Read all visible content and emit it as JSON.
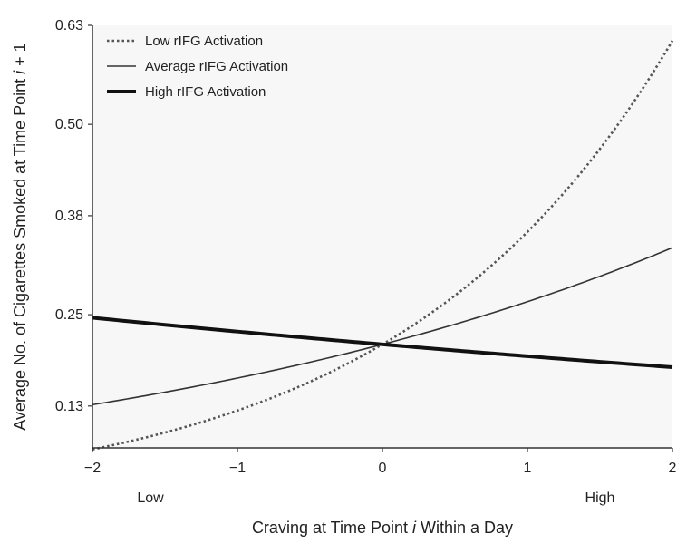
{
  "chart_data": {
    "type": "line",
    "title": "",
    "xlabel_parts": [
      "Craving at Time Point ",
      "i",
      " Within a Day"
    ],
    "ylabel_parts": [
      "Average No. of Cigarettes Smoked at Time Point ",
      "i",
      " + 1"
    ],
    "xlim": [
      -2,
      2
    ],
    "ylim": [
      0.075,
      0.63
    ],
    "x_ticks": [
      {
        "value": -2,
        "label": "−2"
      },
      {
        "value": -1,
        "label": "−1"
      },
      {
        "value": 0,
        "label": "0"
      },
      {
        "value": 1,
        "label": "1"
      },
      {
        "value": 2,
        "label": "2"
      }
    ],
    "y_ticks": [
      {
        "value": 0.13,
        "label": "0.13"
      },
      {
        "value": 0.25,
        "label": "0.25"
      },
      {
        "value": 0.38,
        "label": "0.38"
      },
      {
        "value": 0.5,
        "label": "0.50"
      },
      {
        "value": 0.63,
        "label": "0.63"
      }
    ],
    "x_endpoint_labels": [
      {
        "value": -1.6,
        "label": "Low"
      },
      {
        "value": 1.5,
        "label": "High"
      }
    ],
    "legend_position": "top-left",
    "grid": false,
    "series": [
      {
        "name": "Low rIFG Activation",
        "style": "dotted",
        "color": "#555555",
        "model": "exp",
        "y_at_0": 0.211,
        "y_at_2": 0.61,
        "x": [
          -2,
          -1,
          0,
          1,
          2
        ],
        "y": [
          0.073,
          0.124,
          0.211,
          0.359,
          0.61
        ]
      },
      {
        "name": "Average rIFG Activation",
        "style": "thin",
        "color": "#333333",
        "model": "exp",
        "y_at_0": 0.211,
        "y_at_2": 0.338,
        "x": [
          -2,
          -1,
          0,
          1,
          2
        ],
        "y": [
          0.136,
          0.169,
          0.211,
          0.267,
          0.338
        ]
      },
      {
        "name": "High rIFG Activation",
        "style": "thick",
        "color": "#111111",
        "model": "exp",
        "y_at_0": 0.211,
        "y_at_2": 0.181,
        "x": [
          -2,
          -1,
          0,
          1,
          2
        ],
        "y": [
          0.246,
          0.228,
          0.211,
          0.196,
          0.181
        ]
      }
    ]
  }
}
